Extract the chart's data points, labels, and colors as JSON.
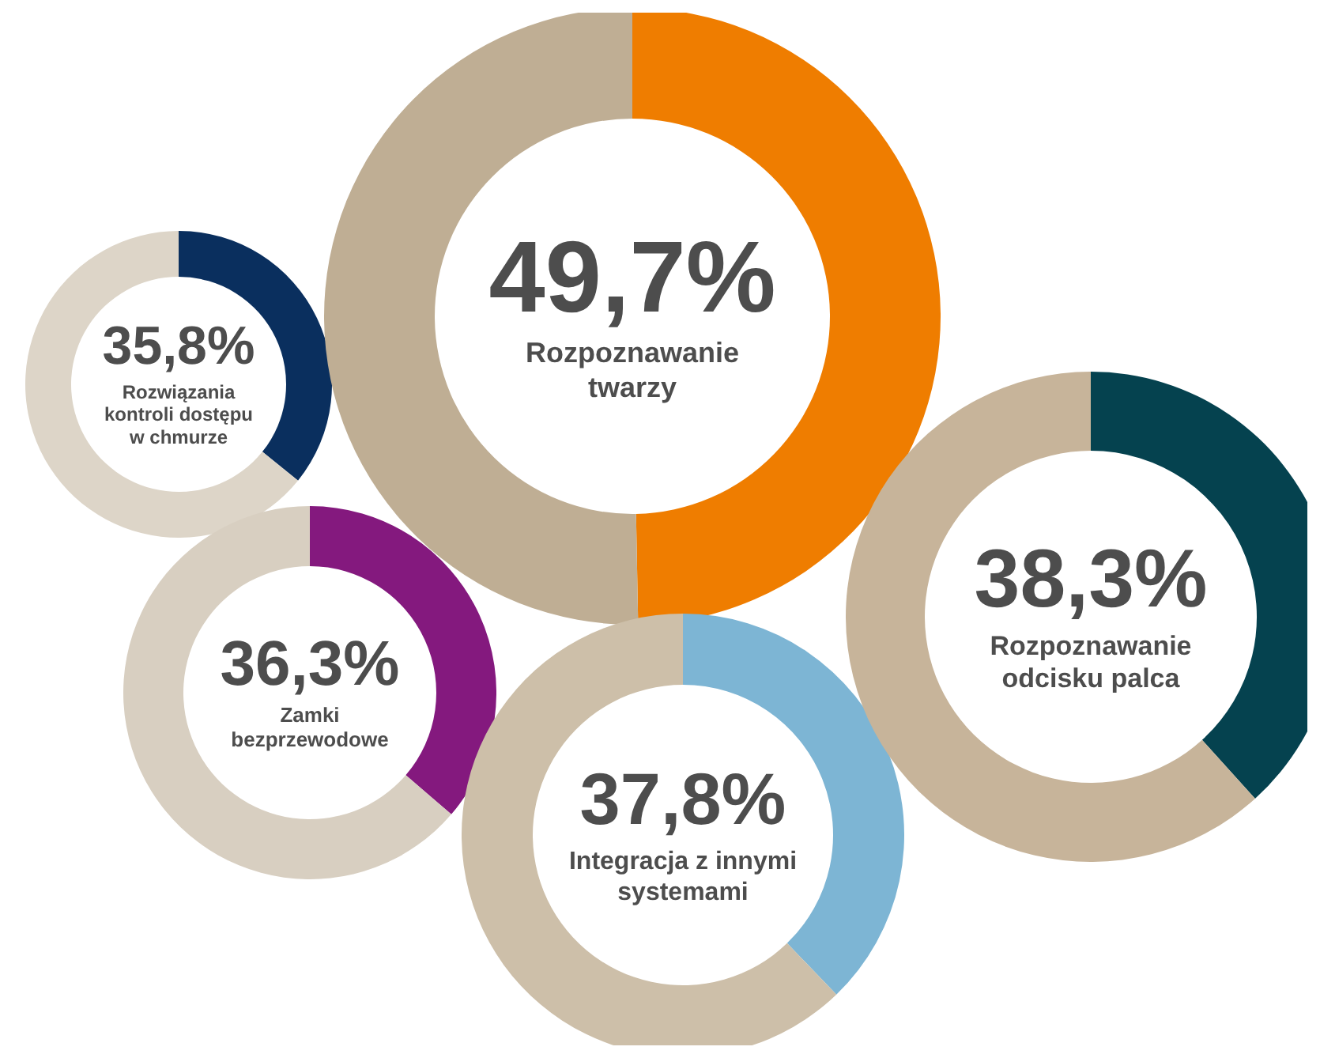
{
  "chart_data": [
    {
      "type": "donut",
      "categories": [
        "Rozwiązania kontroli dostępu w chmurze",
        null
      ],
      "values": [
        35.8,
        64.2
      ],
      "colors": [
        "#0a2f5e",
        "#ddd5c8"
      ],
      "value_labels": [
        "35,8%",
        null
      ],
      "legend": false
    },
    {
      "type": "donut",
      "categories": [
        "Zamki bezprzewodowe",
        null
      ],
      "values": [
        36.3,
        63.7
      ],
      "colors": [
        "#84197e",
        "#d8cfc1"
      ],
      "value_labels": [
        "36,3%",
        null
      ],
      "legend": false
    },
    {
      "type": "donut",
      "categories": [
        "Rozpoznawanie twarzy",
        null
      ],
      "values": [
        49.7,
        50.3
      ],
      "colors": [
        "#ef7d00",
        "#bfae94"
      ],
      "value_labels": [
        "49,7%",
        null
      ],
      "legend": false
    },
    {
      "type": "donut",
      "categories": [
        "Integracja z innymi systemami",
        null
      ],
      "values": [
        37.8,
        62.2
      ],
      "colors": [
        "#7db5d4",
        "#cdbfa9"
      ],
      "value_labels": [
        "37,8%",
        null
      ],
      "legend": false
    },
    {
      "type": "donut",
      "categories": [
        "Rozpoznawanie odcisku palca",
        null
      ],
      "values": [
        38.3,
        61.7
      ],
      "colors": [
        "#05424f",
        "#c7b49a"
      ],
      "value_labels": [
        "38,3%",
        null
      ],
      "legend": false
    }
  ]
}
